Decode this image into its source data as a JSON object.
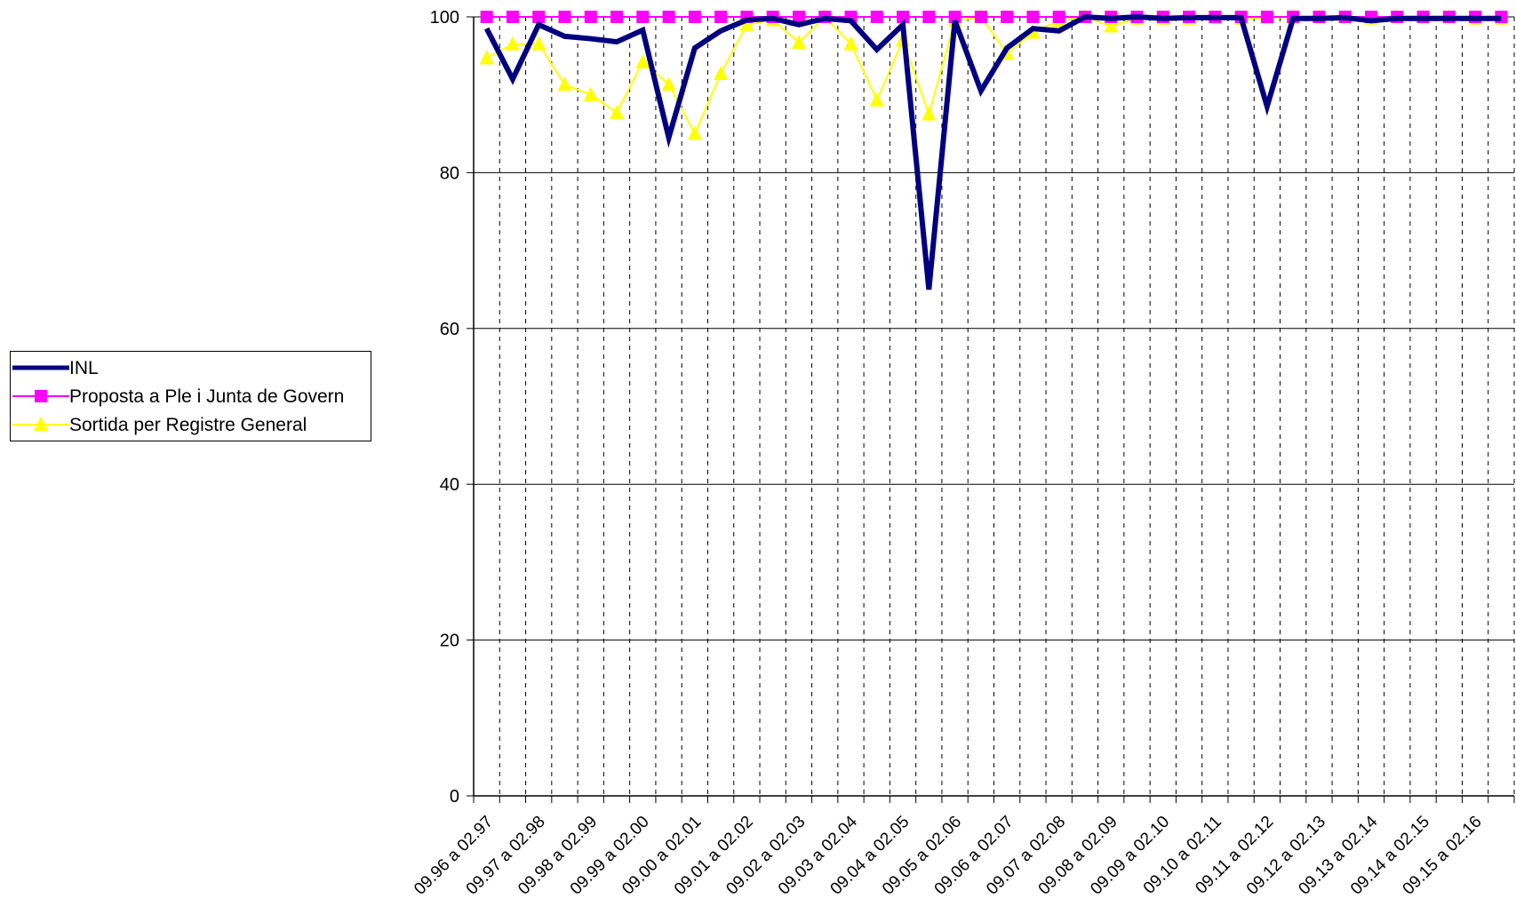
{
  "chart_data": {
    "type": "line",
    "categories": [
      "09.96 a 02.97",
      "",
      "09.97 a 02.98",
      "",
      "09.98 a 02.99",
      "",
      "09.99 a 02.00",
      "",
      "09.00 a 02.01",
      "",
      "09.01 a 02.02",
      "",
      "09.02 a 02.03",
      "",
      "09.03 a 02.04",
      "",
      "09.04 a 02.05",
      "",
      "09.05 a 02.06",
      "",
      "09.06 a 02.07",
      "",
      "09.07 a 02.08",
      "",
      "09.08 a 02.09",
      "",
      "09.09 a 02.10",
      "",
      "09.10 a 02.11",
      "",
      "09.11 a 02.12",
      "",
      "09.12 a 02.13",
      "",
      "09.13 a 02.14",
      "",
      "09.14 a 02.15",
      "",
      "09.15 a 02.16",
      ""
    ],
    "tick_labels": [
      "09.96 a 02.97",
      "09.97 a 02.98",
      "09.98 a 02.99",
      "09.99 a 02.00",
      "09.00 a 02.01",
      "09.01 a 02.02",
      "09.02 a 02.03",
      "09.03 a 02.04",
      "09.04 a 02.05",
      "09.05 a 02.06",
      "09.06 a 02.07",
      "09.07 a 02.08",
      "09.08 a 02.09",
      "09.09 a 02.10",
      "09.10 a 02.11",
      "09.11 a 02.12",
      "09.12 a 02.13",
      "09.13 a 02.14",
      "09.14 a 02.15",
      "09.15 a 02.16"
    ],
    "series": [
      {
        "name": "INL",
        "color": "#000080",
        "marker": "none",
        "values": [
          98.5,
          92,
          99,
          97.5,
          97.2,
          96.8,
          98.3,
          84.5,
          96,
          98.2,
          99.6,
          99.8,
          99,
          99.8,
          99.5,
          95.8,
          99,
          65,
          99.5,
          90.5,
          96,
          98.5,
          98.2,
          100,
          99.8,
          100,
          99.8,
          99.9,
          99.9,
          99.9,
          88.5,
          99.8,
          99.8,
          99.9,
          99.5,
          99.8,
          99.8,
          99.8,
          99.8,
          99.8
        ]
      },
      {
        "name": "Proposta a Ple i Junta de Govern",
        "color": "#ff00ff",
        "marker": "square",
        "values": [
          100,
          100,
          100,
          100,
          100,
          100,
          100,
          100,
          100,
          100,
          100,
          100,
          100,
          100,
          100,
          100,
          100,
          100,
          100,
          100,
          100,
          100,
          100,
          100,
          100,
          100,
          100,
          100,
          100,
          100,
          100,
          100,
          100,
          100,
          100,
          100,
          100,
          100,
          100,
          100
        ]
      },
      {
        "name": "Sortida per Registre General",
        "color": "#ffff00",
        "marker": "triangle",
        "values": [
          94.7,
          96.5,
          96.5,
          91.3,
          90,
          87.7,
          94.2,
          91.3,
          85,
          92.7,
          99,
          99.6,
          96.7,
          100,
          96.5,
          89.3,
          97,
          87.5,
          99.5,
          100,
          95.3,
          98,
          99.5,
          100,
          98.8,
          99.8,
          99.8,
          99.8,
          99.9,
          99.8,
          99.9,
          100,
          100,
          100,
          99.8,
          100,
          100,
          100,
          99.8,
          99.8
        ]
      }
    ],
    "title": "",
    "xlabel": "",
    "ylabel": "",
    "ylim": [
      0,
      100
    ],
    "yticks": [
      "0",
      "20",
      "40",
      "60",
      "80",
      "100"
    ],
    "grid": "horizontal solid, vertical dashed",
    "legend_position": "left"
  }
}
